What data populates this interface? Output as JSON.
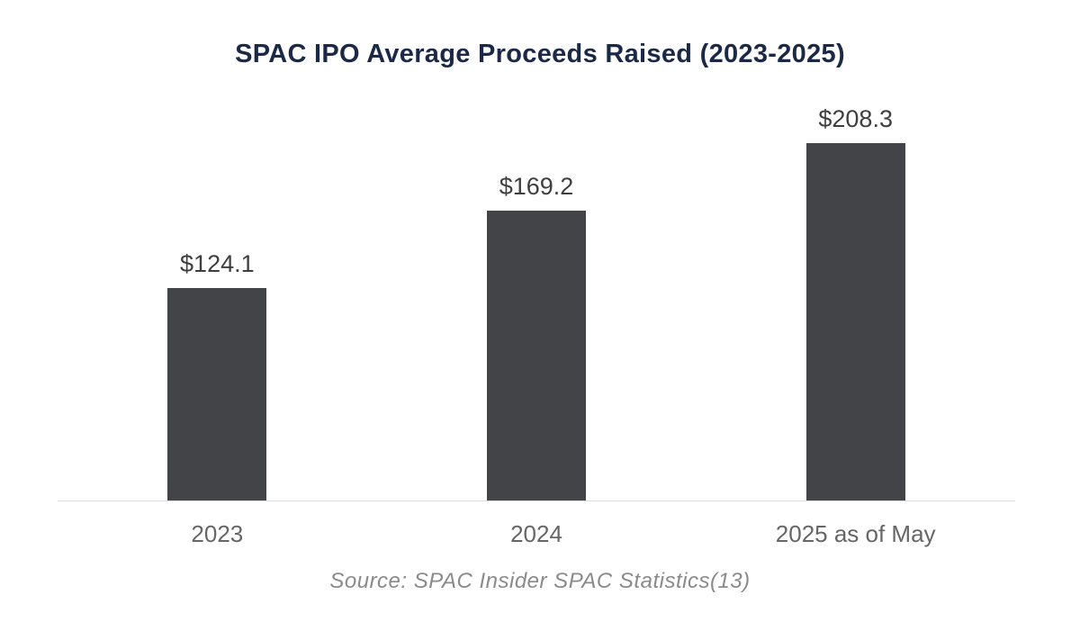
{
  "chart_data": {
    "type": "bar",
    "title": "SPAC IPO Average Proceeds Raised (2023-2025)",
    "categories": [
      "2023",
      "2024",
      "2025 as of May"
    ],
    "values": [
      124.1,
      169.2,
      208.3
    ],
    "value_labels": [
      "$124.1",
      "$169.2",
      "$208.3"
    ],
    "source": "Source: SPAC Insider SPAC Statistics(13)",
    "xlabel": "",
    "ylabel": "",
    "ylim": [
      0,
      240
    ],
    "grid": false,
    "legend": false,
    "colors": {
      "bar": "#434448",
      "title": "#1b2947",
      "value_label": "#3f3f3f",
      "axis_label": "#666666",
      "axis_line": "#dcdcdc",
      "source": "#8a8a8a",
      "background": "#ffffff"
    }
  }
}
